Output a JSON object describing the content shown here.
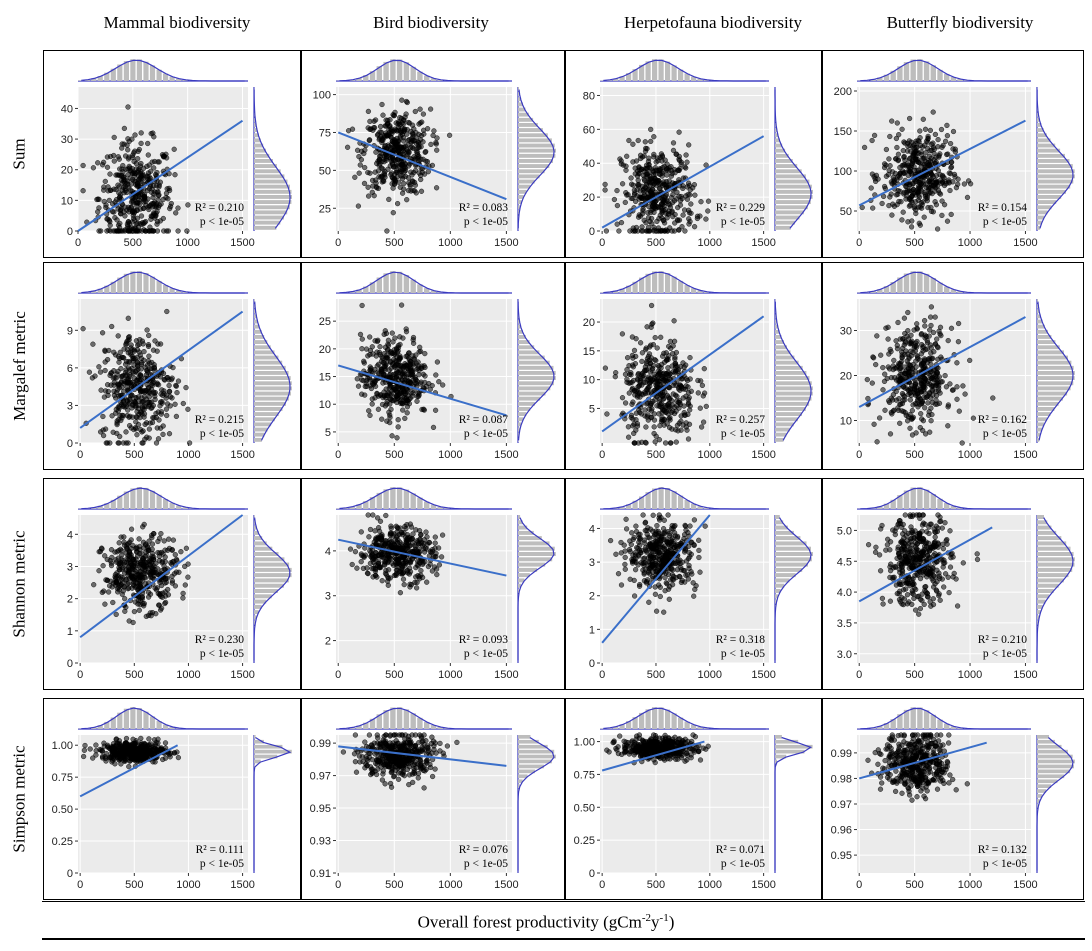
{
  "figure": {
    "col_headers": [
      "Mammal biodiversity",
      "Bird biodiversity",
      "Herpetofauna biodiversity",
      "Butterfly biodiversity"
    ],
    "row_labels": [
      "Sum",
      "Margalef metric",
      "Shannon metric",
      "Simpson metric"
    ],
    "xlabel": "Overall forest productivity (gCm-2y-1)",
    "xlabel_parts": {
      "pre": "Overall forest productivity (gCm",
      "sup1": "-2",
      "mid": "y",
      "sup2": "-1",
      "post": ")"
    }
  },
  "chart_data": [
    {
      "type": "scatter",
      "row": "Sum",
      "col": "Mammal biodiversity",
      "xlim": [
        0,
        1550
      ],
      "ylim": [
        0,
        47
      ],
      "xticks": [
        "0",
        "500",
        "1000",
        "1500"
      ],
      "yticks": [
        "0",
        "10",
        "20",
        "30",
        "40"
      ],
      "r2_text": "R² = 0.210",
      "p_text": "p < 1e-05",
      "trend": {
        "x": [
          0,
          1500
        ],
        "y": [
          0,
          36
        ]
      },
      "cloud": {
        "x_center": 530,
        "x_spread": 170,
        "y_center": 11,
        "y_spread": 9
      }
    },
    {
      "type": "scatter",
      "row": "Sum",
      "col": "Bird biodiversity",
      "xlim": [
        -20,
        1550
      ],
      "ylim": [
        10,
        105
      ],
      "xticks": [
        "0",
        "500",
        "1000",
        "1500"
      ],
      "yticks": [
        "25",
        "50",
        "75",
        "100"
      ],
      "r2_text": "R² = 0.083",
      "p_text": "p < 1e-05",
      "trend": {
        "x": [
          0,
          1500
        ],
        "y": [
          75,
          31
        ]
      },
      "cloud": {
        "x_center": 520,
        "x_spread": 150,
        "y_center": 62,
        "y_spread": 14
      }
    },
    {
      "type": "scatter",
      "row": "Sum",
      "col": "Herpetofauna biodiversity",
      "xlim": [
        -20,
        1550
      ],
      "ylim": [
        0,
        85
      ],
      "xticks": [
        "0",
        "500",
        "1000",
        "1500"
      ],
      "yticks": [
        "0",
        "20",
        "40",
        "60",
        "80"
      ],
      "r2_text": "R² = 0.229",
      "p_text": "p < 1e-05",
      "trend": {
        "x": [
          0,
          1500
        ],
        "y": [
          2,
          56
        ]
      },
      "cloud": {
        "x_center": 520,
        "x_spread": 170,
        "y_center": 22,
        "y_spread": 14
      }
    },
    {
      "type": "scatter",
      "row": "Sum",
      "col": "Butterfly biodiversity",
      "xlim": [
        -20,
        1550
      ],
      "ylim": [
        25,
        205
      ],
      "xticks": [
        "0",
        "500",
        "1000",
        "1500"
      ],
      "yticks": [
        "50",
        "100",
        "150",
        "200"
      ],
      "r2_text": "R² = 0.154",
      "p_text": "p < 1e-05",
      "trend": {
        "x": [
          0,
          1500
        ],
        "y": [
          57,
          163
        ]
      },
      "cloud": {
        "x_center": 530,
        "x_spread": 160,
        "y_center": 95,
        "y_spread": 27
      }
    },
    {
      "type": "scatter",
      "row": "Margalef metric",
      "col": "Mammal biodiversity",
      "xlim": [
        -20,
        1550
      ],
      "ylim": [
        0,
        11.5
      ],
      "xticks": [
        "0",
        "500",
        "1000",
        "1500"
      ],
      "yticks": [
        "0",
        "3",
        "6",
        "9"
      ],
      "r2_text": "R² = 0.215",
      "p_text": "p < 1e-05",
      "trend": {
        "x": [
          0,
          1500
        ],
        "y": [
          1.2,
          10.5
        ]
      },
      "cloud": {
        "x_center": 530,
        "x_spread": 170,
        "y_center": 4.5,
        "y_spread": 2.2
      }
    },
    {
      "type": "scatter",
      "row": "Margalef metric",
      "col": "Bird biodiversity",
      "xlim": [
        -20,
        1550
      ],
      "ylim": [
        3,
        29
      ],
      "xticks": [
        "0",
        "500",
        "1000",
        "1500"
      ],
      "yticks": [
        "5",
        "10",
        "15",
        "20",
        "25"
      ],
      "r2_text": "R² = 0.087",
      "p_text": "p < 1e-05",
      "trend": {
        "x": [
          0,
          1500
        ],
        "y": [
          17,
          8
        ]
      },
      "cloud": {
        "x_center": 510,
        "x_spread": 150,
        "y_center": 15,
        "y_spread": 3.6
      }
    },
    {
      "type": "scatter",
      "row": "Margalef metric",
      "col": "Herpetofauna biodiversity",
      "xlim": [
        -20,
        1550
      ],
      "ylim": [
        -1,
        24
      ],
      "xticks": [
        "0",
        "500",
        "1000",
        "1500"
      ],
      "yticks": [
        "5",
        "10",
        "15",
        "20"
      ],
      "r2_text": "R² = 0.257",
      "p_text": "p < 1e-05",
      "trend": {
        "x": [
          0,
          1500
        ],
        "y": [
          1,
          21
        ]
      },
      "cloud": {
        "x_center": 530,
        "x_spread": 170,
        "y_center": 8,
        "y_spread": 4.5
      }
    },
    {
      "type": "scatter",
      "row": "Margalef metric",
      "col": "Butterfly biodiversity",
      "xlim": [
        -20,
        1550
      ],
      "ylim": [
        5,
        37
      ],
      "xticks": [
        "0",
        "500",
        "1000",
        "1500"
      ],
      "yticks": [
        "10",
        "20",
        "30"
      ],
      "r2_text": "R² = 0.162",
      "p_text": "p < 1e-05",
      "trend": {
        "x": [
          0,
          1500
        ],
        "y": [
          13,
          33
        ]
      },
      "cloud": {
        "x_center": 520,
        "x_spread": 160,
        "y_center": 20,
        "y_spread": 5.5
      }
    },
    {
      "type": "scatter",
      "row": "Shannon metric",
      "col": "Mammal biodiversity",
      "xlim": [
        -20,
        1550
      ],
      "ylim": [
        0,
        4.6
      ],
      "xticks": [
        "0",
        "500",
        "1000",
        "1500"
      ],
      "yticks": [
        "0",
        "1",
        "2",
        "3",
        "4"
      ],
      "r2_text": "R² = 0.230",
      "p_text": "p < 1e-05",
      "trend": {
        "x": [
          0,
          1500
        ],
        "y": [
          0.8,
          4.6
        ]
      },
      "cloud": {
        "x_center": 560,
        "x_spread": 170,
        "y_center": 2.8,
        "y_spread": 0.55
      }
    },
    {
      "type": "scatter",
      "row": "Shannon metric",
      "col": "Bird biodiversity",
      "xlim": [
        -20,
        1550
      ],
      "ylim": [
        1.5,
        4.8
      ],
      "xticks": [
        "0",
        "500",
        "1000",
        "1500"
      ],
      "yticks": [
        "2",
        "3",
        "4"
      ],
      "r2_text": "R² = 0.093",
      "p_text": "p < 1e-05",
      "trend": {
        "x": [
          0,
          1500
        ],
        "y": [
          4.25,
          3.45
        ]
      },
      "cloud": {
        "x_center": 520,
        "x_spread": 170,
        "y_center": 3.95,
        "y_spread": 0.3
      }
    },
    {
      "type": "scatter",
      "row": "Shannon metric",
      "col": "Herpetofauna biodiversity",
      "xlim": [
        -20,
        1550
      ],
      "ylim": [
        0,
        4.4
      ],
      "xticks": [
        "0",
        "500",
        "1000",
        "1500"
      ],
      "yticks": [
        "0",
        "1",
        "2",
        "3",
        "4"
      ],
      "r2_text": "R² = 0.318",
      "p_text": "p < 1e-05",
      "trend": {
        "x": [
          0,
          1000
        ],
        "y": [
          0.6,
          4.4
        ]
      },
      "cloud": {
        "x_center": 560,
        "x_spread": 160,
        "y_center": 3.2,
        "y_spread": 0.5
      }
    },
    {
      "type": "scatter",
      "row": "Shannon metric",
      "col": "Butterfly biodiversity",
      "xlim": [
        -20,
        1550
      ],
      "ylim": [
        2.85,
        5.25
      ],
      "xticks": [
        "0",
        "500",
        "1000",
        "1500"
      ],
      "yticks": [
        "3.0",
        "3.5",
        "4.0",
        "4.5",
        "5.0"
      ],
      "r2_text": "R² = 0.210",
      "p_text": "p < 1e-05",
      "trend": {
        "x": [
          0,
          1200
        ],
        "y": [
          3.85,
          5.05
        ]
      },
      "cloud": {
        "x_center": 530,
        "x_spread": 150,
        "y_center": 4.5,
        "y_spread": 0.35
      }
    },
    {
      "type": "scatter",
      "row": "Simpson metric",
      "col": "Mammal biodiversity",
      "xlim": [
        -20,
        1550
      ],
      "ylim": [
        0,
        1.08
      ],
      "xticks": [
        "0",
        "500",
        "1000",
        "1500"
      ],
      "yticks": [
        "0",
        "0.25",
        "0.50",
        "0.75",
        "1.00"
      ],
      "r2_text": "R² = 0.111",
      "p_text": "p < 1e-05",
      "trend": {
        "x": [
          0,
          900
        ],
        "y": [
          0.6,
          1.0
        ]
      },
      "cloud": {
        "x_center": 500,
        "x_spread": 150,
        "y_center": 0.95,
        "y_spread": 0.04
      }
    },
    {
      "type": "scatter",
      "row": "Simpson metric",
      "col": "Bird biodiversity",
      "xlim": [
        -20,
        1550
      ],
      "ylim": [
        0.91,
        0.995
      ],
      "xticks": [
        "0",
        "500",
        "1000",
        "1500"
      ],
      "yticks": [
        "0.91",
        "0.93",
        "0.95",
        "0.97",
        "0.99"
      ],
      "r2_text": "R² = 0.076",
      "p_text": "p < 1e-05",
      "trend": {
        "x": [
          0,
          1500
        ],
        "y": [
          0.988,
          0.976
        ]
      },
      "cloud": {
        "x_center": 530,
        "x_spread": 160,
        "y_center": 0.982,
        "y_spread": 0.007
      }
    },
    {
      "type": "scatter",
      "row": "Simpson metric",
      "col": "Herpetofauna biodiversity",
      "xlim": [
        -20,
        1550
      ],
      "ylim": [
        0,
        1.05
      ],
      "xticks": [
        "0",
        "500",
        "1000",
        "1500"
      ],
      "yticks": [
        "0",
        "0.25",
        "0.50",
        "0.75",
        "1.00"
      ],
      "r2_text": "R² = 0.071",
      "p_text": "p < 1e-05",
      "trend": {
        "x": [
          0,
          950
        ],
        "y": [
          0.78,
          1.0
        ]
      },
      "cloud": {
        "x_center": 520,
        "x_spread": 170,
        "y_center": 0.95,
        "y_spread": 0.04
      }
    },
    {
      "type": "scatter",
      "row": "Simpson metric",
      "col": "Butterfly biodiversity",
      "xlim": [
        -20,
        1550
      ],
      "ylim": [
        0.943,
        0.997
      ],
      "xticks": [
        "0",
        "500",
        "1000",
        "1500"
      ],
      "yticks": [
        "0.95",
        "0.96",
        "0.97",
        "0.98",
        "0.99"
      ],
      "r2_text": "R² = 0.132",
      "p_text": "p < 1e-05",
      "trend": {
        "x": [
          0,
          1150
        ],
        "y": [
          0.98,
          0.994
        ]
      },
      "cloud": {
        "x_center": 520,
        "x_spread": 150,
        "y_center": 0.986,
        "y_spread": 0.006
      }
    }
  ]
}
